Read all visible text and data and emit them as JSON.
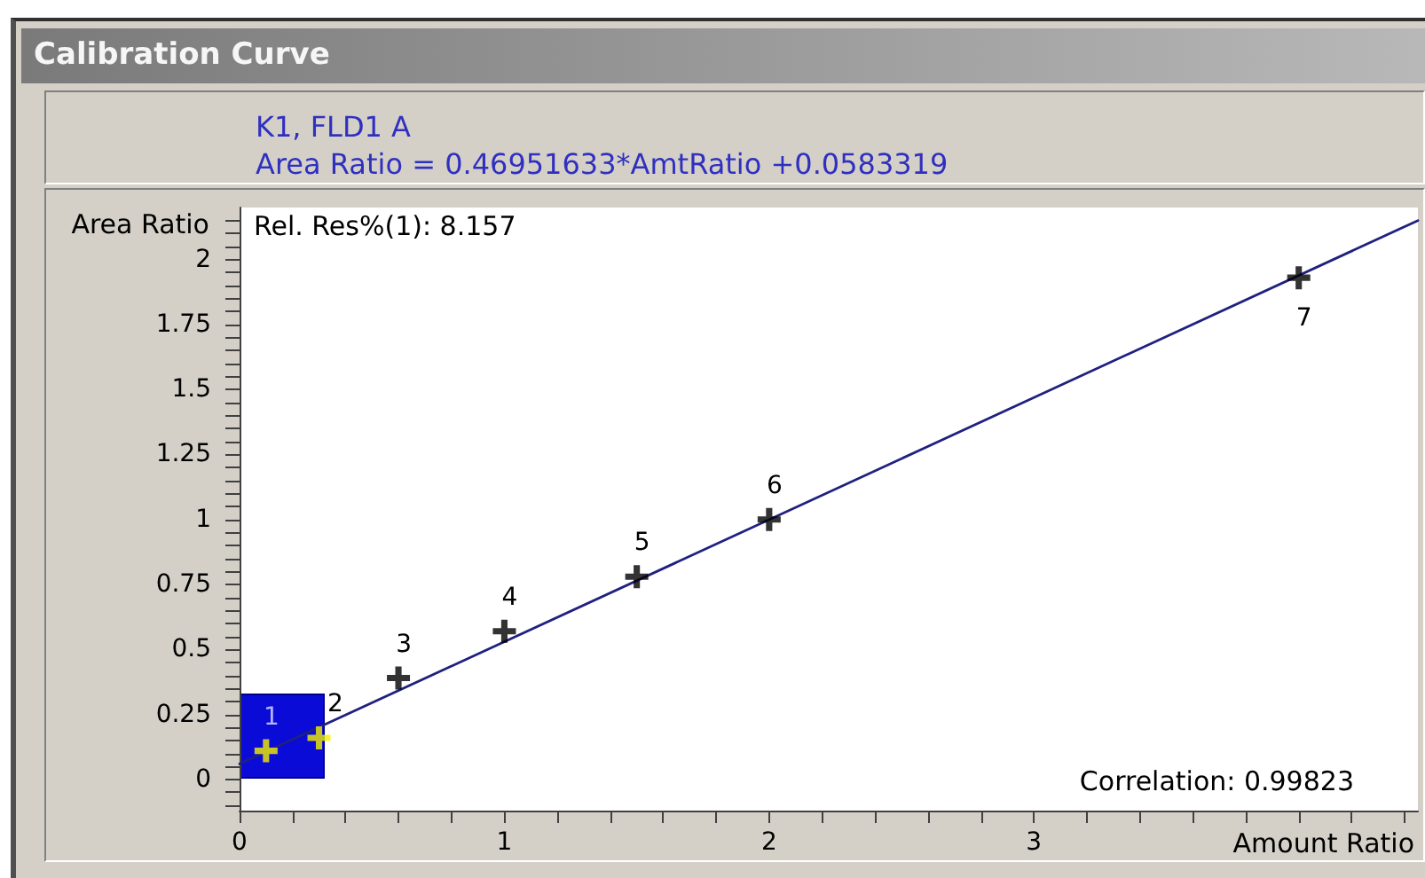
{
  "chart_data": {
    "type": "scatter",
    "title": "Calibration Curve",
    "subtitle": "K1, FLD1 A",
    "xlabel": "Amount Ratio",
    "ylabel": "Area Ratio",
    "annotations": [
      "Area Ratio = 0.46951633*AmtRatio +0.0583319",
      "Rel. Res%(1): 8.157",
      "Correlation: 0.99823",
      {
        "text": "1",
        "x": 0.1,
        "y": 0.11
      },
      {
        "text": "2",
        "x": 0.3,
        "y": 0.16
      },
      {
        "text": "3",
        "x": 0.6,
        "y": 0.39
      },
      {
        "text": "4",
        "x": 1,
        "y": 0.57
      },
      {
        "text": "5",
        "x": 1.5,
        "y": 0.78
      },
      {
        "text": "6",
        "x": 2,
        "y": 1
      },
      {
        "text": "7",
        "x": 4,
        "y": 1.93
      }
    ],
    "xlim": [
      0,
      4.45
    ],
    "ylim": [
      -0.12,
      2.2
    ],
    "xticks": [
      0,
      {
        "value": 0.2,
        "label": null
      },
      {
        "value": 0.4,
        "label": null
      },
      {
        "value": 0.6,
        "label": null
      },
      {
        "value": 0.8,
        "label": null
      },
      1,
      {
        "value": 1.2,
        "label": null
      },
      {
        "value": 1.4,
        "label": null
      },
      {
        "value": 1.6,
        "label": null
      },
      {
        "value": 1.8,
        "label": null
      },
      2,
      {
        "value": 2.2,
        "label": null
      },
      {
        "value": 2.4,
        "label": null
      },
      {
        "value": 2.6,
        "label": null
      },
      {
        "value": 2.8,
        "label": null
      },
      3,
      {
        "value": 3.2,
        "label": null
      },
      {
        "value": 3.4,
        "label": null
      },
      {
        "value": 3.6,
        "label": null
      },
      {
        "value": 3.8,
        "label": null
      },
      {
        "value": 4,
        "label": null
      },
      {
        "value": 4.2,
        "label": null
      },
      {
        "value": 4.4,
        "label": null
      }
    ],
    "yticks": [
      {
        "value": -0.1,
        "label": null
      },
      {
        "value": -0.05,
        "label": null
      },
      0,
      {
        "value": 0.05,
        "label": null
      },
      {
        "value": 0.1,
        "label": null
      },
      {
        "value": 0.15,
        "label": null
      },
      {
        "value": 0.2,
        "label": null
      },
      0.25,
      {
        "value": 0.3,
        "label": null
      },
      {
        "value": 0.35,
        "label": null
      },
      {
        "value": 0.4,
        "label": null
      },
      {
        "value": 0.45,
        "label": null
      },
      0.5,
      {
        "value": 0.55,
        "label": null
      },
      {
        "value": 0.6,
        "label": null
      },
      {
        "value": 0.65,
        "label": null
      },
      {
        "value": 0.7,
        "label": null
      },
      0.75,
      {
        "value": 0.8,
        "label": null
      },
      {
        "value": 0.85,
        "label": null
      },
      {
        "value": 0.9,
        "label": null
      },
      {
        "value": 0.95,
        "label": null
      },
      1,
      {
        "value": 1.05,
        "label": null
      },
      {
        "value": 1.1,
        "label": null
      },
      {
        "value": 1.15,
        "label": null
      },
      {
        "value": 1.2,
        "label": null
      },
      1.25,
      {
        "value": 1.3,
        "label": null
      },
      {
        "value": 1.35,
        "label": null
      },
      {
        "value": 1.4,
        "label": null
      },
      {
        "value": 1.45,
        "label": null
      },
      1.5,
      {
        "value": 1.55,
        "label": null
      },
      {
        "value": 1.6,
        "label": null
      },
      {
        "value": 1.65,
        "label": null
      },
      {
        "value": 1.7,
        "label": null
      },
      1.75,
      {
        "value": 1.8,
        "label": null
      },
      {
        "value": 1.85,
        "label": null
      },
      {
        "value": 1.9,
        "label": null
      },
      {
        "value": 1.95,
        "label": null
      },
      2,
      {
        "value": 2.05,
        "label": null
      },
      {
        "value": 2.1,
        "label": null
      },
      {
        "value": 2.15,
        "label": null
      }
    ],
    "marker": "cross",
    "series": [
      {
        "x": [
          0.1,
          0.3,
          0.6,
          1,
          1.5,
          2,
          4
        ],
        "values": [
          0.11,
          0.16,
          0.39,
          0.57,
          0.78,
          1,
          1.93
        ],
        "colors": [
          "#f5f000",
          "#f5f000",
          "#000000",
          "#000000",
          "#000000",
          "#000000",
          "#000000"
        ]
      },
      {
        "type": "line",
        "x": [
          0,
          4.45
        ],
        "values": [
          0.06,
          2.15
        ],
        "color": "#202080",
        "marker": "none"
      }
    ]
  }
}
